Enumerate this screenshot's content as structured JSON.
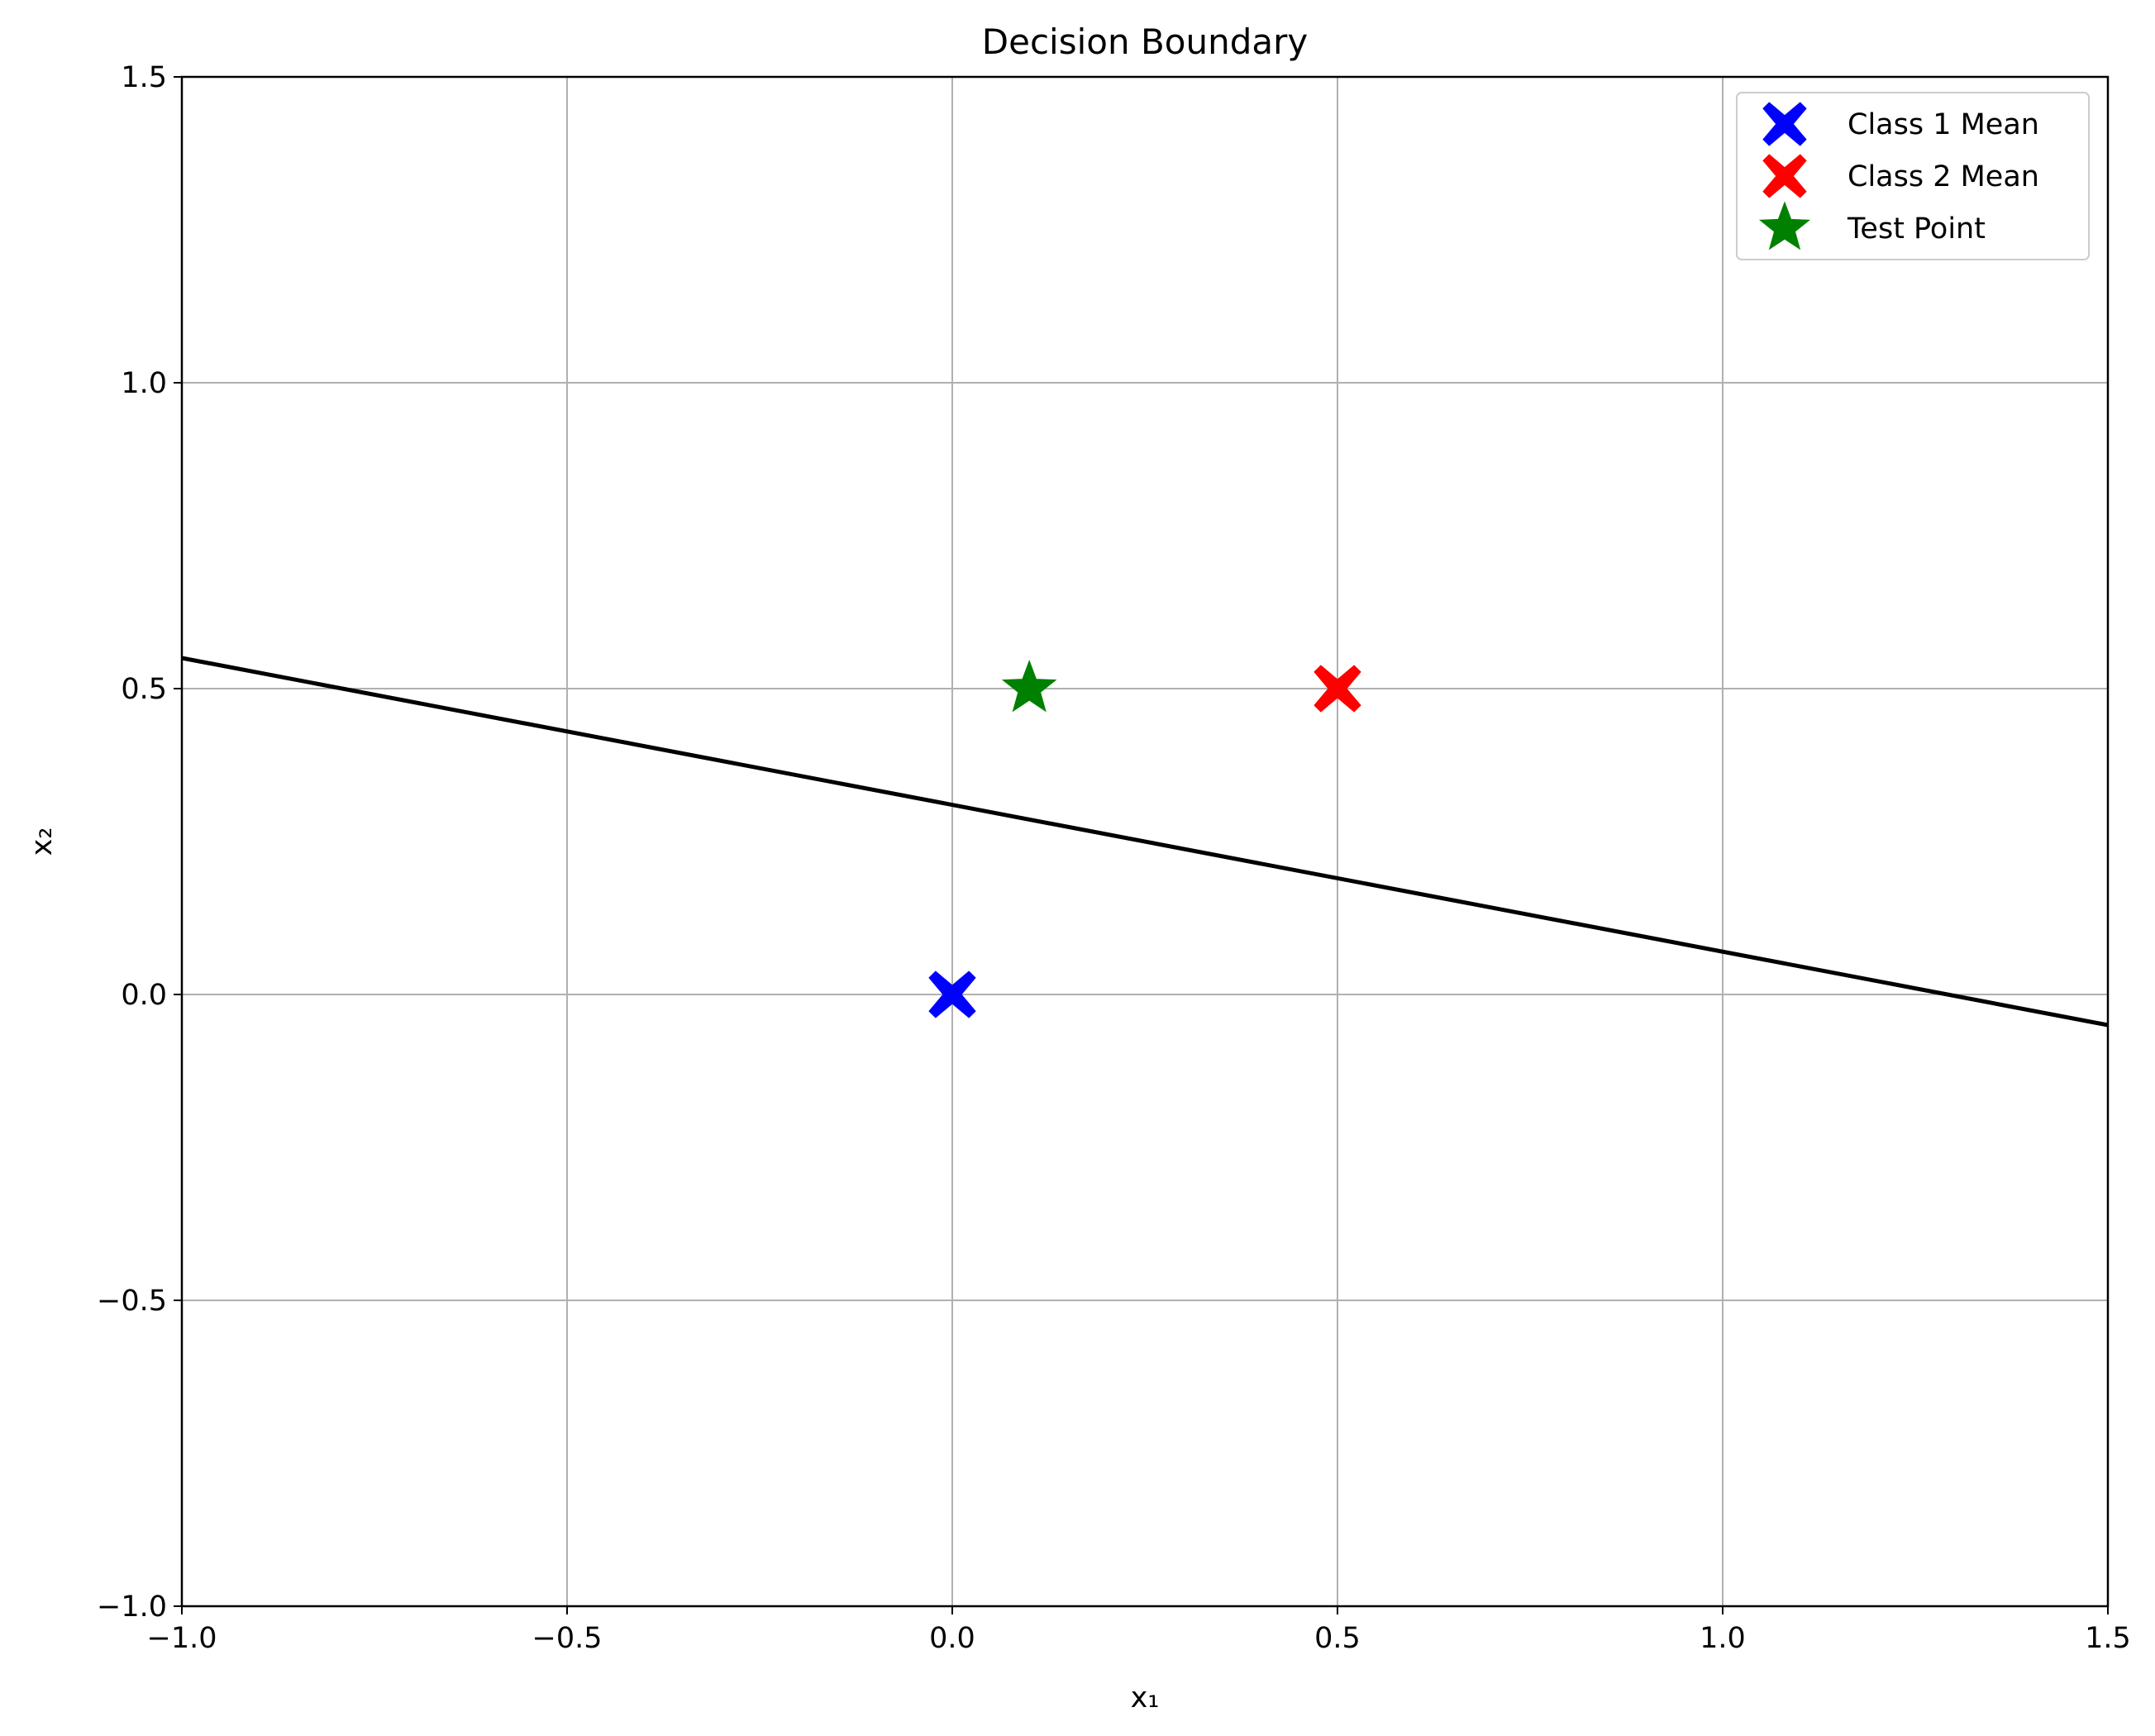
{
  "chart_data": {
    "type": "scatter",
    "title": "Decision Boundary",
    "xlabel": "x₁",
    "ylabel": "x₂",
    "xlim": [
      -1.0,
      1.5
    ],
    "ylim": [
      -1.0,
      1.5
    ],
    "xticks": [
      -1.0,
      -0.5,
      0.0,
      0.5,
      1.0,
      1.5
    ],
    "yticks": [
      -1.0,
      -0.5,
      0.0,
      0.5,
      1.0,
      1.5
    ],
    "xtick_labels": [
      "−1.0",
      "−0.5",
      "0.0",
      "0.5",
      "1.0",
      "1.5"
    ],
    "ytick_labels": [
      "−1.0",
      "−0.5",
      "0.0",
      "0.5",
      "1.0",
      "1.5"
    ],
    "grid": true,
    "legend_position": "top-right",
    "series": [
      {
        "name": "Class 1 Mean",
        "marker": "X",
        "color": "#0000ff",
        "x": [
          0.0
        ],
        "y": [
          0.0
        ]
      },
      {
        "name": "Class 2 Mean",
        "marker": "X",
        "color": "#ff0000",
        "x": [
          0.5
        ],
        "y": [
          0.5
        ]
      },
      {
        "name": "Test Point",
        "marker": "star",
        "color": "#008000",
        "x": [
          0.1
        ],
        "y": [
          0.5
        ]
      }
    ],
    "boundary": {
      "color": "#000000",
      "x": [
        -1.0,
        1.5
      ],
      "y": [
        0.55,
        -0.05
      ]
    }
  }
}
